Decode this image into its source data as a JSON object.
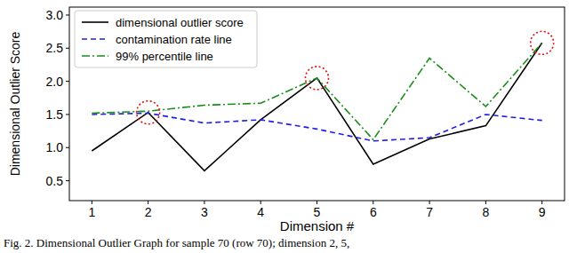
{
  "chart_data": {
    "type": "line",
    "x_label": "Dimension #",
    "y_label": "Dimensional Outlier Score",
    "caption": "Fig. 2.  Dimensional Outlier Graph for sample 70 (row 70); dimension 2, 5,",
    "x": [
      1,
      2,
      3,
      4,
      5,
      6,
      7,
      8,
      9
    ],
    "series": [
      {
        "name": "dimensional outlier score",
        "color": "#000000",
        "line_style": "solid",
        "values": [
          0.95,
          1.53,
          0.65,
          1.42,
          2.05,
          0.75,
          1.13,
          1.33,
          2.58
        ]
      },
      {
        "name": "contamination rate line",
        "color": "#1f1fe0",
        "line_style": "dashed",
        "values": [
          1.5,
          1.52,
          1.37,
          1.42,
          1.28,
          1.1,
          1.15,
          1.5,
          1.41
        ]
      },
      {
        "name": "99% percentile line",
        "color": "#1a8c1a",
        "line_style": "dashdot",
        "values": [
          1.52,
          1.55,
          1.64,
          1.67,
          2.05,
          1.12,
          2.35,
          1.62,
          2.58
        ]
      }
    ],
    "highlight_x": [
      2,
      5,
      9
    ],
    "xlim": [
      0.6,
      9.4
    ],
    "ylim": [
      0.2,
      3.12
    ],
    "xticks": [
      1,
      2,
      3,
      4,
      5,
      6,
      7,
      8,
      9
    ],
    "yticks": [
      {
        "value": 0.5,
        "label": "0.5"
      },
      {
        "value": 1,
        "label": "1.0"
      },
      {
        "value": 1.5,
        "label": "1.5"
      },
      {
        "value": 2,
        "label": "2.0"
      },
      {
        "value": 2.5,
        "label": "2.5"
      },
      {
        "value": 3,
        "label": "3.0"
      }
    ],
    "legend": "upper left",
    "grid": false
  }
}
